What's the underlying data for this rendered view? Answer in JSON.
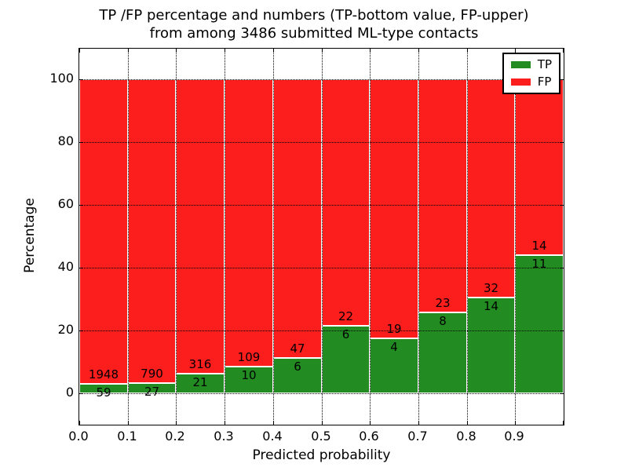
{
  "chart_data": {
    "type": "bar",
    "stacked": true,
    "title_line1": "TP /FP percentage and numbers (TP-bottom value, FP-upper)",
    "title_line2": "from among 3486 submitted ML-type contacts",
    "xlabel": "Predicted probability",
    "ylabel": "Percentage",
    "x_tick_labels": [
      "0.0",
      "0.1",
      "0.2",
      "0.3",
      "0.4",
      "0.5",
      "0.6",
      "0.7",
      "0.8",
      "0.9"
    ],
    "y_ticks": [
      0,
      20,
      40,
      60,
      80,
      100
    ],
    "ylim": [
      -10,
      110
    ],
    "bin_width": 0.1,
    "categories": [
      "0.0-0.1",
      "0.1-0.2",
      "0.2-0.3",
      "0.3-0.4",
      "0.4-0.5",
      "0.5-0.6",
      "0.6-0.7",
      "0.7-0.8",
      "0.8-0.9",
      "0.9-1.0"
    ],
    "series": [
      {
        "name": "TP",
        "color": "#228B22",
        "values": [
          59,
          27,
          21,
          10,
          6,
          6,
          4,
          8,
          14,
          11
        ]
      },
      {
        "name": "FP",
        "color": "#FC1D1D",
        "values": [
          1948,
          790,
          316,
          109,
          47,
          22,
          19,
          23,
          32,
          14
        ]
      }
    ],
    "bar_value_labels_tp": [
      "59",
      "27",
      "21",
      "10",
      "6",
      "6",
      "4",
      "8",
      "14",
      "11"
    ],
    "bar_value_labels_fp": [
      "1948",
      "790",
      "316",
      "109",
      "47",
      "22",
      "19",
      "23",
      "32",
      "14"
    ],
    "legend": {
      "position": "upper-right",
      "entries": [
        {
          "label": "TP",
          "color": "#228B22"
        },
        {
          "label": "FP",
          "color": "#FC1D1D"
        }
      ]
    },
    "grid": "dotted",
    "units": "percent"
  }
}
